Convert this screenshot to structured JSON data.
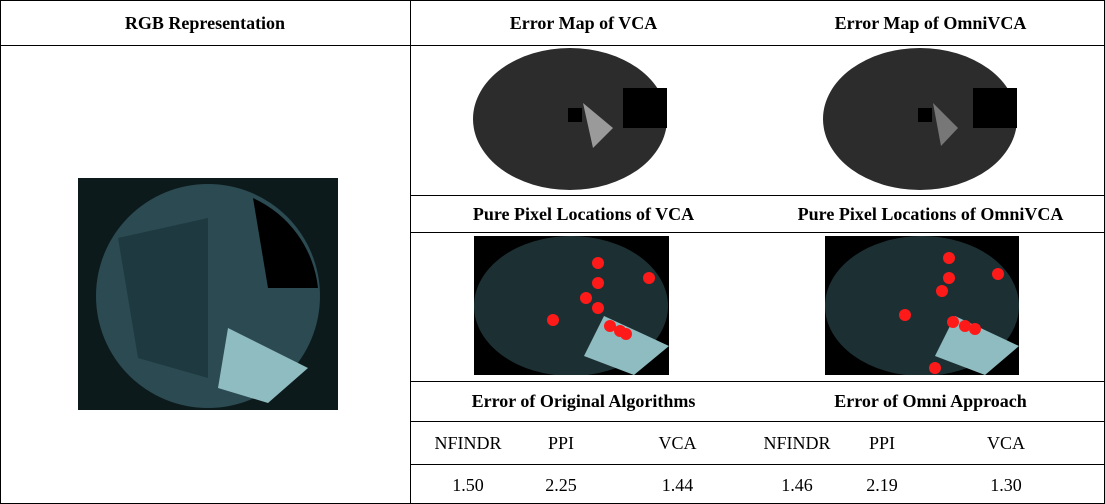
{
  "table": {
    "headers": [
      "RGB Representation",
      "Error Map of VCA",
      "Error Map of OmniVCA"
    ],
    "pure_pixel_headers": [
      "Pure Pixel Locations of VCA",
      "Pure Pixel Locations of OmniVCA"
    ],
    "error_headers": [
      "Error of Original Algorithms",
      "Error of Omni Approach"
    ],
    "methods": [
      "NFINDR",
      "PPI",
      "VCA",
      "NFINDR",
      "PPI",
      "VCA"
    ],
    "values": [
      "1.50",
      "2.25",
      "1.44",
      "1.46",
      "2.19",
      "1.30"
    ]
  }
}
